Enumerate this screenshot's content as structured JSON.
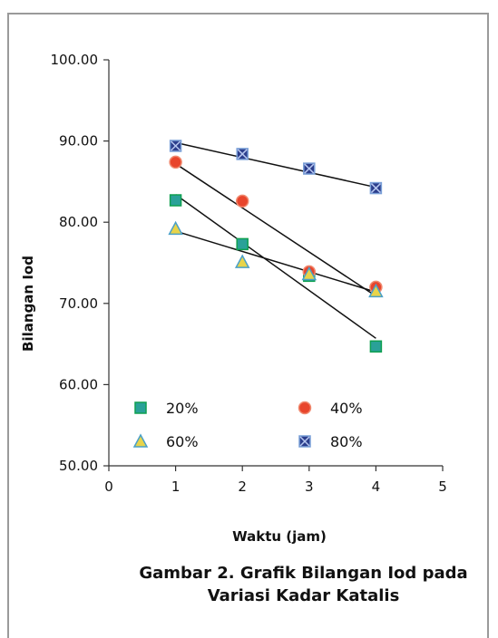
{
  "chart_data": {
    "type": "scatter",
    "xlabel": "Waktu (jam)",
    "ylabel": "Bilangan Iod",
    "xlim": [
      0,
      5
    ],
    "ylim": [
      50,
      100
    ],
    "x_ticks": [
      "0",
      "1",
      "2",
      "3",
      "4",
      "5"
    ],
    "y_ticks": [
      "50.00",
      "60.00",
      "70.00",
      "80.00",
      "90.00",
      "100.00"
    ],
    "grid": false,
    "legend_position": "bottom-inside",
    "series": [
      {
        "name": "20%",
        "x": [
          1,
          2,
          3,
          4
        ],
        "y": [
          82.7,
          77.3,
          73.4,
          64.7
        ],
        "marker": "square",
        "color": "#2aa198",
        "edge": "#0fa050",
        "trendline": [
          83.4,
          65.7
        ]
      },
      {
        "name": "40%",
        "x": [
          1,
          2,
          3,
          4
        ],
        "y": [
          87.4,
          82.6,
          73.9,
          72.0
        ],
        "marker": "circle",
        "color": "#e8452c",
        "edge": "#f08a70",
        "trendline": [
          87.2,
          70.9
        ]
      },
      {
        "name": "60%",
        "x": [
          1,
          2,
          3,
          4
        ],
        "y": [
          79.2,
          75.1,
          73.6,
          71.5
        ],
        "marker": "triangle",
        "color": "#e8d44a",
        "edge": "#4aa0c8",
        "trendline": [
          78.9,
          71.4
        ]
      },
      {
        "name": "80%",
        "x": [
          1,
          2,
          3,
          4
        ],
        "y": [
          89.4,
          88.4,
          86.6,
          84.2
        ],
        "marker": "xsquare",
        "color": "#2c3e8c",
        "edge": "#7aa0d8",
        "trendline": [
          89.8,
          84.3
        ]
      }
    ]
  },
  "caption": {
    "line1": "Gambar 2. Grafik Bilangan Iod pada",
    "line2": "Variasi Kadar Katalis"
  }
}
